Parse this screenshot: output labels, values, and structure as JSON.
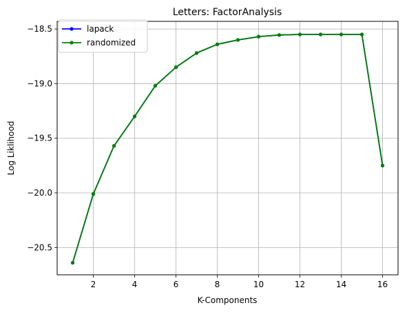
{
  "chart_data": {
    "type": "line",
    "title": "Letters: FactorAnalysis",
    "xlabel": "K-Components",
    "ylabel": "Log Liklihood",
    "xlim": [
      0.25,
      16.75
    ],
    "ylim": [
      -20.75,
      -18.43
    ],
    "xticks": [
      2,
      4,
      6,
      8,
      10,
      12,
      14,
      16
    ],
    "xtick_labels": [
      "2",
      "4",
      "6",
      "8",
      "10",
      "12",
      "14",
      "16"
    ],
    "yticks": [
      -20.5,
      -20.0,
      -19.5,
      -19.0,
      -18.5
    ],
    "ytick_labels": [
      "−20.5",
      "−20.0",
      "−19.5",
      "−19.0",
      "−18.5"
    ],
    "grid": true,
    "legend_position": "top-left",
    "x": [
      1,
      2,
      3,
      4,
      5,
      6,
      7,
      8,
      9,
      10,
      11,
      12,
      13,
      14,
      15,
      16
    ],
    "series": [
      {
        "name": "lapack",
        "color": "#0000ff",
        "values": [
          -20.64,
          -20.01,
          -19.57,
          -19.3,
          -19.02,
          -18.85,
          -18.72,
          -18.64,
          -18.6,
          -18.57,
          -18.555,
          -18.55,
          -18.55,
          -18.55,
          -18.55,
          -19.75
        ]
      },
      {
        "name": "randomized",
        "color": "#008000",
        "values": [
          -20.64,
          -20.01,
          -19.57,
          -19.3,
          -19.02,
          -18.85,
          -18.72,
          -18.64,
          -18.6,
          -18.57,
          -18.555,
          -18.55,
          -18.55,
          -18.55,
          -18.55,
          -19.75
        ]
      }
    ]
  }
}
